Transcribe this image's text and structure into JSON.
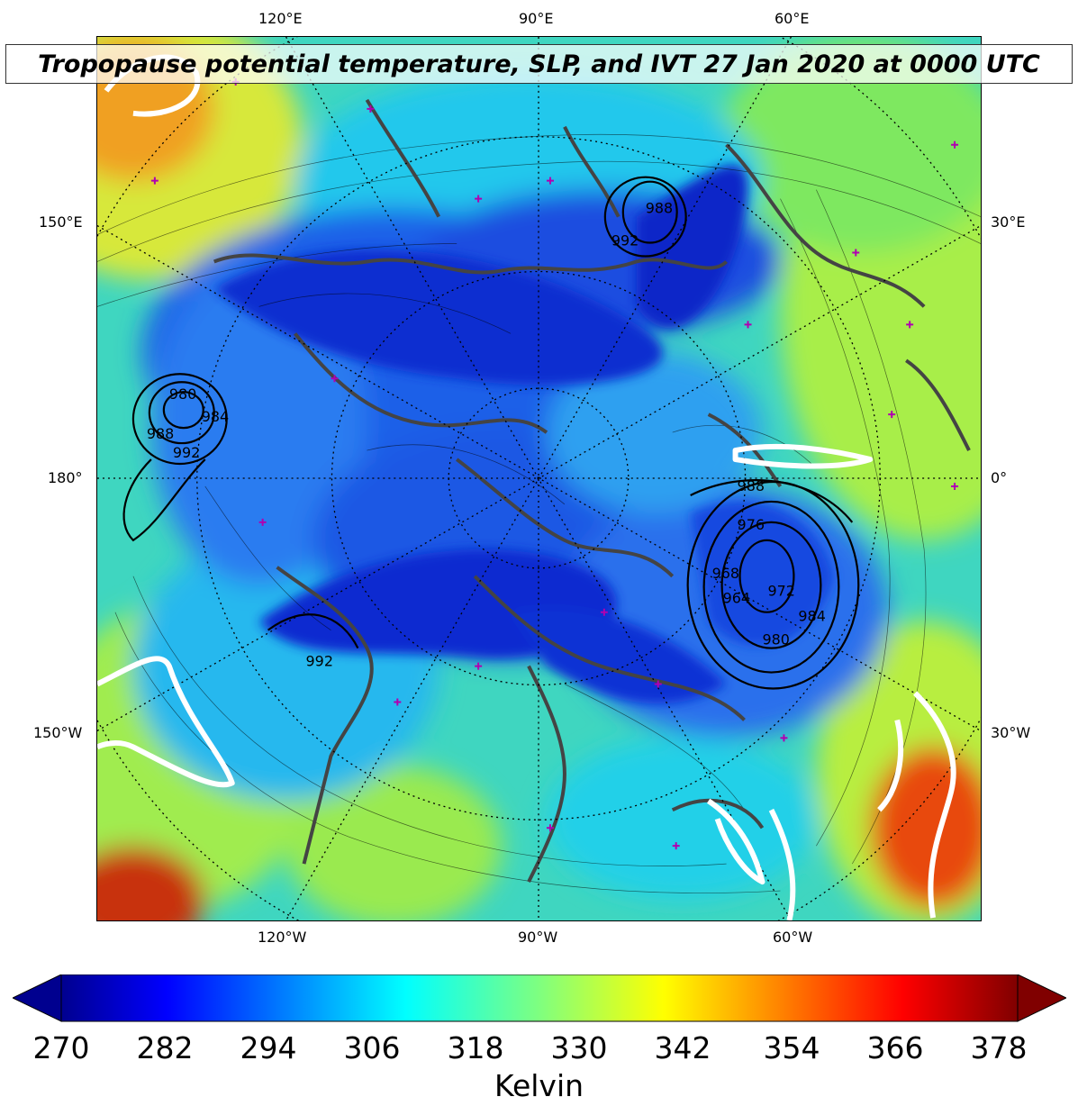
{
  "title": "Tropopause potential temperature, SLP, and IVT 27 Jan 2020 at 0000 UTC",
  "map": {
    "top_labels": [
      "120°E",
      "90°E",
      "60°E"
    ],
    "bottom_labels": [
      "120°W",
      "90°W",
      "60°W"
    ],
    "left_labels": [
      "150°E",
      "180°",
      "150°W"
    ],
    "right_labels": [
      "30°E",
      "0°",
      "30°W"
    ],
    "slp_contour_labels": [
      "980",
      "988",
      "992",
      "984",
      "988",
      "992",
      "992",
      "988",
      "976",
      "968",
      "964",
      "972",
      "980",
      "984"
    ],
    "colors": {
      "coastline": "#444444",
      "station_marker": "#b000b0",
      "slp_contour": "#000000",
      "ivt_contour": "#ffffff"
    }
  },
  "colorbar": {
    "label": "Kelvin",
    "ticks": [
      "270",
      "282",
      "294",
      "306",
      "318",
      "330",
      "342",
      "354",
      "366",
      "378"
    ],
    "colormap": "jet",
    "range": [
      270,
      378
    ],
    "extend": "both"
  }
}
